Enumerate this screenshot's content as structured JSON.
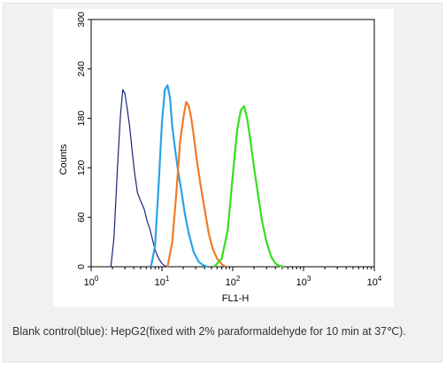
{
  "figure": {
    "caption": "Blank control(blue): HepG2(fixed with 2% paraformaldehyde for 10 min at 37℃)."
  },
  "chart_data": {
    "type": "line",
    "title": "",
    "xlabel": "FL1-H",
    "ylabel": "Counts",
    "xscale": "log",
    "xlim": [
      1,
      10000
    ],
    "ylim": [
      0,
      300
    ],
    "xticks": [
      {
        "value": 1,
        "base": "10",
        "exp": "0"
      },
      {
        "value": 10,
        "base": "10",
        "exp": "1"
      },
      {
        "value": 100,
        "base": "10",
        "exp": "2"
      },
      {
        "value": 1000,
        "base": "10",
        "exp": "3"
      },
      {
        "value": 10000,
        "base": "10",
        "exp": "4"
      }
    ],
    "yticks": [
      0,
      60,
      120,
      180,
      240,
      300
    ],
    "grid": false,
    "legend": "none",
    "series": [
      {
        "color": "#1a237e",
        "x": [
          1.9,
          2.1,
          2.35,
          2.6,
          2.8,
          3.0,
          3.25,
          3.5,
          3.8,
          4.1,
          4.5,
          5.0,
          5.6,
          6.2,
          6.8,
          7.5,
          8.2,
          9.0,
          10.0,
          11.0,
          12.0
        ],
        "y": [
          0,
          35,
          120,
          185,
          215,
          210,
          190,
          170,
          140,
          115,
          90,
          80,
          70,
          55,
          45,
          30,
          18,
          10,
          4,
          1,
          0
        ]
      },
      {
        "color": "#29a3e6",
        "x": [
          7.0,
          8.0,
          9.0,
          10.0,
          11.0,
          12.0,
          13.0,
          14.0,
          15.5,
          17.0,
          19.0,
          21.0,
          24.0,
          28.0,
          33.0,
          38.0,
          44.0
        ],
        "y": [
          0,
          25,
          100,
          175,
          215,
          220,
          205,
          170,
          140,
          115,
          90,
          65,
          40,
          18,
          6,
          2,
          0
        ]
      },
      {
        "color": "#f07b2a",
        "x": [
          12.0,
          14.0,
          16.0,
          18.0,
          20.0,
          22.0,
          24.0,
          26.0,
          28.0,
          31.0,
          35.0,
          40.0,
          46.0,
          52.0,
          60.0,
          70.0,
          80.0
        ],
        "y": [
          0,
          30,
          90,
          150,
          180,
          200,
          195,
          180,
          160,
          130,
          100,
          70,
          40,
          22,
          10,
          3,
          0
        ]
      },
      {
        "color": "#33e01c",
        "x": [
          55,
          70,
          85,
          100,
          115,
          130,
          145,
          160,
          180,
          200,
          230,
          260,
          300,
          350,
          400,
          460,
          520
        ],
        "y": [
          0,
          10,
          45,
          110,
          165,
          190,
          195,
          180,
          150,
          120,
          85,
          55,
          30,
          12,
          4,
          1,
          0
        ]
      }
    ]
  }
}
